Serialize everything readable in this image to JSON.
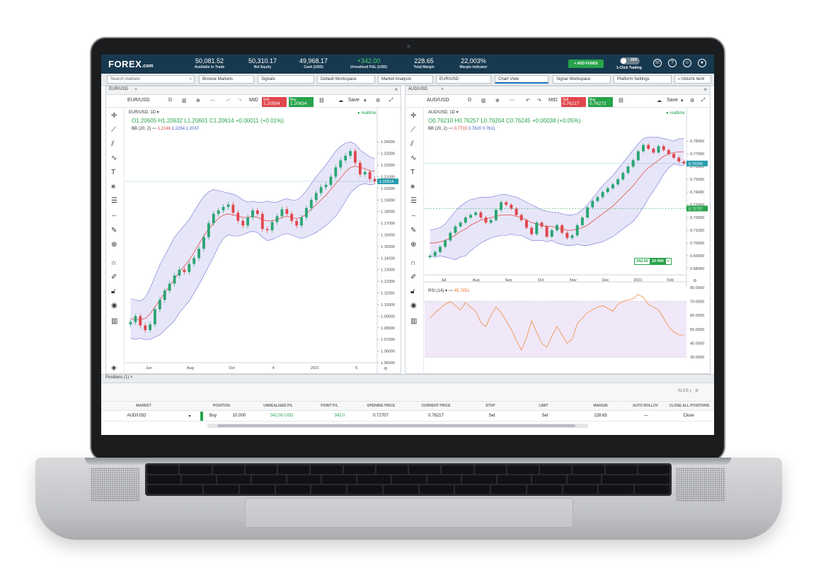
{
  "topbar": {
    "brand": "FOREX",
    "brand_suffix": ".com",
    "stats": [
      {
        "value": "50,081.52",
        "label": "Available to Trade"
      },
      {
        "value": "50,310.17",
        "label": "Net Equity"
      },
      {
        "value": "49,968.17",
        "label": "Cash (USD)"
      },
      {
        "value": "+342.00",
        "label": "Unrealised P&L (USD)"
      },
      {
        "value": "228.65",
        "label": "Total Margin"
      },
      {
        "value": "22,003%",
        "label": "Margin Indicator"
      }
    ],
    "add_funds": "+ ADD FUNDS",
    "toggle_state": "OFF",
    "one_click": "1-Click Trading",
    "icons": [
      "phone-icon",
      "help-icon",
      "support-icon",
      "user-icon"
    ]
  },
  "tabs": {
    "search_placeholder": "Search markets",
    "items": [
      "Browse Markets",
      "Signals",
      "Default Workspace",
      "Market Analysis",
      "EUR/USD",
      "Chart View",
      "Signal Workspace",
      "Platform Settings"
    ],
    "create_new": "+ CREATE NEW"
  },
  "left_chart": {
    "tab": "EUR/USD",
    "symbol": "EUR/USD",
    "interval": "D",
    "quote_type": "MID",
    "sell_label": "Sell",
    "sell_price": "1.20594",
    "buy_label": "Buy",
    "buy_price": "1.20634",
    "save_label": "Save",
    "title": "EUR/USD, 1D",
    "ohlc": {
      "o": "O1.20605",
      "h": "H1.20632",
      "l": "L1.20601",
      "c": "C1.20614",
      "chg": "+0.00011 (+0.01%)"
    },
    "bb_label": "BB (20, 2)",
    "bb_values": [
      "1.2146",
      "1.2254",
      "1.2037"
    ],
    "realtime": "realtime",
    "current_price_tag": "1.20614"
  },
  "right_chart": {
    "tab": "AUD/USD",
    "symbol": "AUD/USD",
    "interval": "D",
    "quote_type": "MID",
    "sell_label": "Sell",
    "sell_price": "0.76217",
    "buy_label": "Buy",
    "buy_price": "0.76272",
    "save_label": "Save",
    "title": "AUD/USD, 1D",
    "ohlc": {
      "o": "O0.76210",
      "h": "H0.76257",
      "l": "L0.76204",
      "c": "C0.76245",
      "chg": "+0.00038 (+0.05%)"
    },
    "bb_label": "BB (20, 2)",
    "bb_values": [
      "0.7715",
      "0.7820",
      "0.7611"
    ],
    "realtime": "realtime",
    "current_price_tag": "0.76245",
    "position_tag_pnl": "342.00",
    "position_tag_size": "10 000",
    "position_tag_price": "0.72707",
    "rsi_label": "RSI (14)",
    "rsi_value": "45.7851"
  },
  "chart_data": [
    {
      "type": "candlestick",
      "title": "EUR/USD, 1D",
      "x_ticks": [
        "Jun",
        "Aug",
        "Oct",
        "4",
        "2021",
        "5"
      ],
      "y_ticks": [
        "1.24000",
        "1.23000",
        "1.22000",
        "1.21000",
        "1.20000",
        "1.19000",
        "1.18000",
        "1.17000",
        "1.16000",
        "1.15000",
        "1.14000",
        "1.13000",
        "1.12000",
        "1.11000",
        "1.10000",
        "1.09000",
        "1.08000",
        "1.07000",
        "1.06000",
        "1.05000"
      ],
      "ylim": [
        1.05,
        1.245
      ],
      "close": [
        1.085,
        1.09,
        1.082,
        1.078,
        1.083,
        1.096,
        1.104,
        1.112,
        1.118,
        1.125,
        1.13,
        1.128,
        1.135,
        1.14,
        1.148,
        1.158,
        1.17,
        1.178,
        1.181,
        1.184,
        1.186,
        1.179,
        1.172,
        1.168,
        1.175,
        1.181,
        1.178,
        1.165,
        1.164,
        1.171,
        1.176,
        1.182,
        1.178,
        1.172,
        1.168,
        1.175,
        1.183,
        1.19,
        1.196,
        1.201,
        1.203,
        1.21,
        1.218,
        1.224,
        1.228,
        1.232,
        1.222,
        1.212,
        1.214,
        1.208,
        1.206
      ],
      "bb_mid": [
        1.088,
        1.087,
        1.087,
        1.088,
        1.092,
        1.098,
        1.104,
        1.11,
        1.116,
        1.122,
        1.128,
        1.133,
        1.138,
        1.145,
        1.152,
        1.159,
        1.165,
        1.17,
        1.174,
        1.177,
        1.178,
        1.177,
        1.176,
        1.175,
        1.175,
        1.176,
        1.175,
        1.173,
        1.172,
        1.172,
        1.173,
        1.175,
        1.176,
        1.175,
        1.174,
        1.175,
        1.178,
        1.182,
        1.186,
        1.19,
        1.194,
        1.199,
        1.204,
        1.209,
        1.214,
        1.218,
        1.219,
        1.218,
        1.217,
        1.215,
        1.2146
      ],
      "bb_upper": [
        1.105,
        1.104,
        1.103,
        1.106,
        1.114,
        1.124,
        1.134,
        1.142,
        1.15,
        1.158,
        1.163,
        1.168,
        1.173,
        1.18,
        1.187,
        1.193,
        1.197,
        1.199,
        1.198,
        1.197,
        1.196,
        1.195,
        1.193,
        1.19,
        1.188,
        1.189,
        1.188,
        1.188,
        1.189,
        1.188,
        1.188,
        1.19,
        1.191,
        1.19,
        1.19,
        1.193,
        1.198,
        1.204,
        1.21,
        1.215,
        1.22,
        1.226,
        1.232,
        1.236,
        1.239,
        1.24,
        1.238,
        1.233,
        1.23,
        1.227,
        1.2254
      ],
      "bb_lower": [
        1.071,
        1.07,
        1.071,
        1.07,
        1.07,
        1.072,
        1.074,
        1.078,
        1.082,
        1.086,
        1.093,
        1.098,
        1.103,
        1.11,
        1.117,
        1.125,
        1.133,
        1.141,
        1.15,
        1.157,
        1.16,
        1.159,
        1.159,
        1.16,
        1.162,
        1.163,
        1.162,
        1.158,
        1.155,
        1.156,
        1.158,
        1.16,
        1.161,
        1.16,
        1.158,
        1.157,
        1.158,
        1.16,
        1.162,
        1.165,
        1.168,
        1.172,
        1.176,
        1.182,
        1.189,
        1.196,
        1.2,
        1.203,
        1.204,
        1.203,
        1.2037
      ]
    },
    {
      "type": "candlestick",
      "title": "AUD/USD, 1D",
      "x_ticks": [
        "Jul",
        "Aug",
        "Sep",
        "Oct",
        "Nov",
        "Dec",
        "2021",
        "Feb"
      ],
      "y_ticks": [
        "0.78000",
        "0.77000",
        "0.76000",
        "0.75000",
        "0.74000",
        "0.73000",
        "0.72000",
        "0.71000",
        "0.70000",
        "0.69000",
        "0.68000"
      ],
      "ylim": [
        0.675,
        0.784
      ],
      "close": [
        0.69,
        0.693,
        0.697,
        0.702,
        0.708,
        0.713,
        0.716,
        0.72,
        0.722,
        0.724,
        0.72,
        0.716,
        0.718,
        0.726,
        0.732,
        0.73,
        0.727,
        0.722,
        0.718,
        0.712,
        0.707,
        0.716,
        0.713,
        0.705,
        0.71,
        0.714,
        0.708,
        0.704,
        0.706,
        0.714,
        0.72,
        0.728,
        0.733,
        0.736,
        0.74,
        0.743,
        0.746,
        0.75,
        0.755,
        0.76,
        0.765,
        0.772,
        0.777,
        0.774,
        0.771,
        0.776,
        0.773,
        0.77,
        0.767,
        0.764,
        0.76245
      ],
      "bb_mid": [
        0.7,
        0.7,
        0.701,
        0.702,
        0.704,
        0.706,
        0.709,
        0.711,
        0.714,
        0.716,
        0.718,
        0.719,
        0.72,
        0.721,
        0.722,
        0.722,
        0.722,
        0.721,
        0.72,
        0.718,
        0.716,
        0.715,
        0.714,
        0.713,
        0.713,
        0.712,
        0.711,
        0.71,
        0.71,
        0.711,
        0.712,
        0.714,
        0.717,
        0.72,
        0.723,
        0.726,
        0.729,
        0.733,
        0.737,
        0.741,
        0.745,
        0.75,
        0.755,
        0.759,
        0.762,
        0.765,
        0.768,
        0.77,
        0.771,
        0.7715,
        0.7715
      ],
      "bb_upper": [
        0.71,
        0.711,
        0.712,
        0.715,
        0.72,
        0.725,
        0.729,
        0.732,
        0.734,
        0.735,
        0.736,
        0.736,
        0.736,
        0.737,
        0.738,
        0.738,
        0.737,
        0.736,
        0.734,
        0.732,
        0.73,
        0.728,
        0.726,
        0.725,
        0.724,
        0.724,
        0.723,
        0.722,
        0.722,
        0.723,
        0.726,
        0.73,
        0.735,
        0.74,
        0.745,
        0.749,
        0.753,
        0.758,
        0.763,
        0.768,
        0.773,
        0.778,
        0.782,
        0.783,
        0.783,
        0.783,
        0.782,
        0.781,
        0.78,
        0.7818,
        0.782
      ],
      "bb_lower": [
        0.69,
        0.689,
        0.69,
        0.689,
        0.688,
        0.687,
        0.689,
        0.69,
        0.694,
        0.697,
        0.7,
        0.702,
        0.704,
        0.705,
        0.706,
        0.706,
        0.707,
        0.706,
        0.706,
        0.704,
        0.702,
        0.702,
        0.702,
        0.701,
        0.702,
        0.7,
        0.699,
        0.698,
        0.698,
        0.699,
        0.698,
        0.698,
        0.699,
        0.7,
        0.701,
        0.703,
        0.705,
        0.708,
        0.711,
        0.714,
        0.717,
        0.722,
        0.728,
        0.735,
        0.741,
        0.747,
        0.754,
        0.759,
        0.762,
        0.761,
        0.7611
      ]
    },
    {
      "type": "line",
      "title": "RSI (14)",
      "y_ticks": [
        "80.0000",
        "70.0000",
        "60.0000",
        "50.0000",
        "40.0000",
        "30.0000"
      ],
      "ylim": [
        26,
        82
      ],
      "bands": [
        30,
        70
      ],
      "values": [
        58,
        62,
        65,
        68,
        70,
        67,
        64,
        69,
        66,
        63,
        55,
        52,
        60,
        66,
        62,
        56,
        50,
        42,
        35,
        44,
        56,
        48,
        40,
        37,
        45,
        52,
        46,
        40,
        43,
        54,
        58,
        62,
        64,
        66,
        67,
        65,
        63,
        68,
        70,
        71,
        72,
        75,
        73,
        68,
        66,
        64,
        58,
        52,
        48,
        46,
        45.7851
      ]
    }
  ],
  "positions": {
    "tab": "Positions (1)",
    "export": "XLXS",
    "headers": [
      "MARKET",
      "POSITION",
      "UNREALISED P/L",
      "POINT P/L",
      "OPENING PRICE",
      "CURRENT PRICE",
      "STOP",
      "LIMIT",
      "MARGIN",
      "AUTO ROLLOV",
      "CLOSE ALL POSITIONS"
    ],
    "row": {
      "market": "AUD/USD",
      "side": "Buy",
      "size": "10,000",
      "upl": "342.00 USD",
      "point_pl": "342.0",
      "opening_price": "0.72707",
      "current_price": "0.76217",
      "stop": "Set",
      "limit": "Set",
      "margin": "228.65",
      "auto_rollover": "—",
      "close": "Close"
    }
  },
  "colors": {
    "topbar": "#17394f",
    "buy": "#27a34a",
    "sell": "#e0474c",
    "bb_band": "#c9c8f0",
    "bb_line": "#e34c4c",
    "rsi_line": "#f08a3c"
  }
}
